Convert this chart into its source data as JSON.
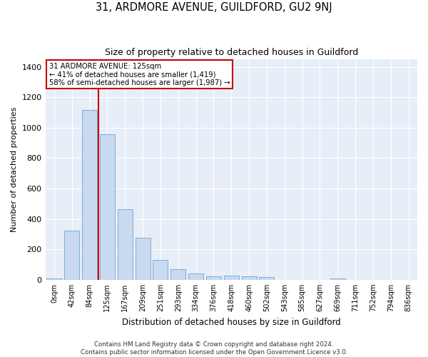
{
  "title": "31, ARDMORE AVENUE, GUILDFORD, GU2 9NJ",
  "subtitle": "Size of property relative to detached houses in Guildford",
  "xlabel": "Distribution of detached houses by size in Guildford",
  "ylabel": "Number of detached properties",
  "footer_line1": "Contains HM Land Registry data © Crown copyright and database right 2024.",
  "footer_line2": "Contains public sector information licensed under the Open Government Licence v3.0.",
  "bar_color": "#c9d9f0",
  "bar_edge_color": "#7aafd4",
  "background_color": "#e8eef8",
  "annotation_box_color": "#cc0000",
  "vline_color": "#cc0000",
  "categories": [
    "0sqm",
    "42sqm",
    "84sqm",
    "125sqm",
    "167sqm",
    "209sqm",
    "251sqm",
    "293sqm",
    "334sqm",
    "376sqm",
    "418sqm",
    "460sqm",
    "502sqm",
    "543sqm",
    "585sqm",
    "627sqm",
    "669sqm",
    "711sqm",
    "752sqm",
    "794sqm",
    "836sqm"
  ],
  "values": [
    10,
    325,
    1115,
    955,
    465,
    275,
    130,
    70,
    40,
    22,
    25,
    22,
    18,
    0,
    0,
    0,
    10,
    0,
    0,
    0,
    0
  ],
  "ylim": [
    0,
    1450
  ],
  "yticks": [
    0,
    200,
    400,
    600,
    800,
    1000,
    1200,
    1400
  ],
  "annotation_line1": "31 ARDMORE AVENUE: 125sqm",
  "annotation_line2": "← 41% of detached houses are smaller (1,419)",
  "annotation_line3": "58% of semi-detached houses are larger (1,987) →",
  "vline_x_index": 2.5,
  "figsize": [
    6.0,
    5.0
  ],
  "dpi": 100
}
